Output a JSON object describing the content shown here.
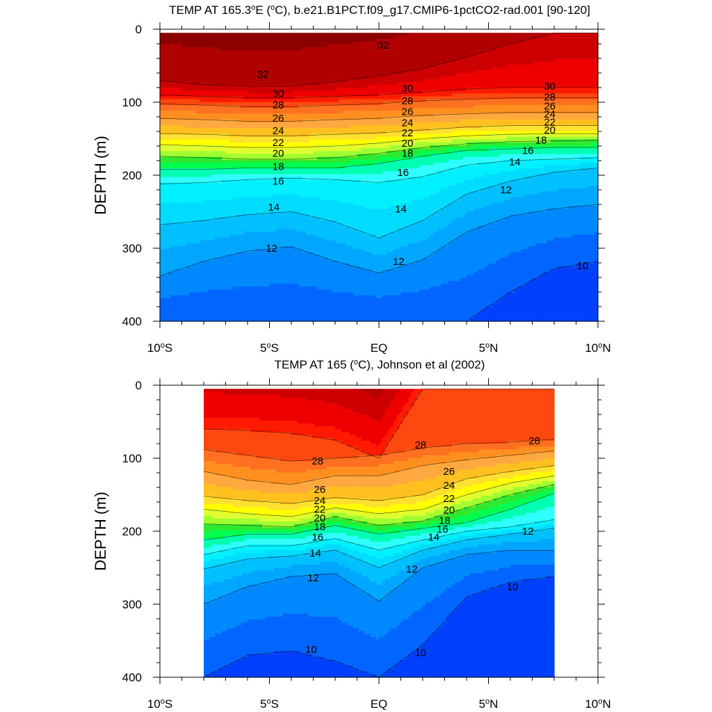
{
  "chart_data": [
    {
      "type": "heatmap",
      "subtype": "filled-contour-section",
      "title_prefix": "TEMP AT 165.3",
      "title_degree": "o",
      "title_mid": "E (",
      "title_unit_o": "o",
      "title_suffix": "C), b.e21.B1PCT.f09_g17.CMIP6-1pctCO2-rad.001 [90-120]",
      "ylabel": "DEPTH (m)",
      "ylim": [
        400,
        0
      ],
      "xlim": [
        -10,
        10
      ],
      "yticks": [
        "0",
        "100",
        "200",
        "300",
        "400"
      ],
      "xticks": [
        {
          "num": "10",
          "hemi": "S"
        },
        {
          "num": "5",
          "hemi": "S"
        },
        {
          "num": "EQ",
          "hemi": ""
        },
        {
          "num": "5",
          "hemi": "N"
        },
        {
          "num": "10",
          "hemi": "N"
        }
      ],
      "data_lat_range": [
        -10,
        10
      ],
      "data_depth_range": [
        5,
        400
      ],
      "levels": [
        10,
        11,
        12,
        13,
        14,
        15,
        16,
        17,
        18,
        19,
        20,
        21,
        22,
        23,
        24,
        25,
        26,
        27,
        28,
        29,
        30,
        31,
        32
      ],
      "isotherm_depths": {
        "lat": [
          -10,
          -8,
          -6,
          -4,
          -2,
          0,
          2,
          4,
          6,
          8,
          10
        ],
        "t32": [
          70,
          76,
          78,
          78,
          72,
          64,
          54,
          38,
          20,
          5,
          5
        ],
        "t30": [
          90,
          92,
          94,
          94,
          92,
          90,
          86,
          82,
          80,
          80,
          80
        ],
        "t28": [
          102,
          104,
          106,
          106,
          104,
          102,
          98,
          96,
          94,
          94,
          94
        ],
        "t26": [
          122,
          124,
          126,
          126,
          124,
          122,
          118,
          116,
          114,
          114,
          114
        ],
        "t24": [
          143,
          144,
          146,
          146,
          144,
          142,
          138,
          134,
          132,
          132,
          132
        ],
        "t22": [
          158,
          160,
          162,
          162,
          160,
          156,
          150,
          146,
          144,
          143,
          143
        ],
        "t20": [
          174,
          176,
          178,
          178,
          176,
          170,
          162,
          157,
          154,
          153,
          152
        ],
        "t18": [
          192,
          192,
          190,
          190,
          190,
          184,
          174,
          166,
          164,
          162,
          162
        ],
        "t16": [
          212,
          210,
          206,
          204,
          206,
          210,
          202,
          186,
          180,
          178,
          176
        ],
        "t14": [
          268,
          262,
          254,
          250,
          264,
          286,
          262,
          226,
          208,
          196,
          190
        ],
        "t12": [
          338,
          318,
          304,
          298,
          318,
          334,
          316,
          278,
          256,
          246,
          240
        ],
        "t10": [
          400,
          400,
          400,
          400,
          400,
          400,
          400,
          400,
          360,
          328,
          318
        ]
      },
      "contour_labels": [
        {
          "text": "32",
          "lat": -5.3,
          "depth": 62
        },
        {
          "text": "32",
          "lat": 0.2,
          "depth": 22
        },
        {
          "text": "30",
          "lat": -4.6,
          "depth": 88
        },
        {
          "text": "28",
          "lat": -4.6,
          "depth": 104
        },
        {
          "text": "26",
          "lat": -4.6,
          "depth": 122
        },
        {
          "text": "24",
          "lat": -4.6,
          "depth": 139
        },
        {
          "text": "22",
          "lat": -4.6,
          "depth": 155
        },
        {
          "text": "20",
          "lat": -4.6,
          "depth": 170
        },
        {
          "text": "18",
          "lat": -4.6,
          "depth": 188
        },
        {
          "text": "16",
          "lat": -4.6,
          "depth": 208
        },
        {
          "text": "14",
          "lat": -4.8,
          "depth": 244
        },
        {
          "text": "12",
          "lat": -4.9,
          "depth": 300
        },
        {
          "text": "30",
          "lat": 1.3,
          "depth": 81
        },
        {
          "text": "28",
          "lat": 1.3,
          "depth": 98
        },
        {
          "text": "26",
          "lat": 1.3,
          "depth": 113
        },
        {
          "text": "24",
          "lat": 1.3,
          "depth": 128
        },
        {
          "text": "22",
          "lat": 1.3,
          "depth": 142
        },
        {
          "text": "20",
          "lat": 1.3,
          "depth": 156
        },
        {
          "text": "18",
          "lat": 1.3,
          "depth": 170
        },
        {
          "text": "16",
          "lat": 1.1,
          "depth": 196
        },
        {
          "text": "14",
          "lat": 1.0,
          "depth": 246
        },
        {
          "text": "12",
          "lat": 0.9,
          "depth": 318
        },
        {
          "text": "30",
          "lat": 7.8,
          "depth": 78
        },
        {
          "text": "28",
          "lat": 7.8,
          "depth": 93
        },
        {
          "text": "26",
          "lat": 7.8,
          "depth": 105
        },
        {
          "text": "24",
          "lat": 7.8,
          "depth": 116
        },
        {
          "text": "22",
          "lat": 7.8,
          "depth": 127
        },
        {
          "text": "20",
          "lat": 7.8,
          "depth": 138
        },
        {
          "text": "18",
          "lat": 7.4,
          "depth": 152
        },
        {
          "text": "16",
          "lat": 6.8,
          "depth": 166
        },
        {
          "text": "14",
          "lat": 6.2,
          "depth": 182
        },
        {
          "text": "12",
          "lat": 5.8,
          "depth": 220
        },
        {
          "text": "10",
          "lat": 9.3,
          "depth": 324
        }
      ]
    },
    {
      "type": "heatmap",
      "subtype": "filled-contour-section",
      "title_prefix": "TEMP AT 165 (",
      "title_unit_o": "o",
      "title_suffix": "C), Johnson et al (2002)",
      "ylabel": "DEPTH (m)",
      "ylim": [
        400,
        0
      ],
      "xlim": [
        -10,
        10
      ],
      "yticks": [
        "0",
        "100",
        "200",
        "300",
        "400"
      ],
      "xticks": [
        {
          "num": "10",
          "hemi": "S"
        },
        {
          "num": "5",
          "hemi": "S"
        },
        {
          "num": "EQ",
          "hemi": ""
        },
        {
          "num": "5",
          "hemi": "N"
        },
        {
          "num": "10",
          "hemi": "N"
        }
      ],
      "data_lat_range": [
        -8,
        8
      ],
      "data_depth_range": [
        5,
        400
      ],
      "levels": [
        10,
        11,
        12,
        13,
        14,
        15,
        16,
        17,
        18,
        19,
        20,
        21,
        22,
        23,
        24,
        25,
        26,
        27,
        28,
        29
      ],
      "isotherm_depths": {
        "lat": [
          -8,
          -6,
          -4,
          -2,
          0,
          2,
          4,
          6,
          8
        ],
        "t29": [
          60,
          62,
          66,
          75,
          100,
          5,
          5,
          5,
          5
        ],
        "t28": [
          88,
          96,
          104,
          100,
          96,
          86,
          80,
          78,
          74
        ],
        "t26": [
          118,
          130,
          136,
          124,
          124,
          110,
          102,
          96,
          90
        ],
        "t24": [
          152,
          158,
          162,
          154,
          158,
          150,
          128,
          118,
          110
        ],
        "t22": [
          170,
          176,
          180,
          168,
          176,
          170,
          150,
          134,
          124
        ],
        "t20": [
          190,
          192,
          194,
          180,
          192,
          186,
          168,
          150,
          136
        ],
        "t18": [
          212,
          204,
          204,
          192,
          204,
          196,
          188,
          170,
          148
        ],
        "t16": [
          232,
          220,
          220,
          210,
          226,
          212,
          200,
          194,
          184
        ],
        "t14": [
          252,
          238,
          234,
          226,
          250,
          226,
          212,
          204,
          196
        ],
        "t12": [
          300,
          276,
          262,
          258,
          296,
          250,
          232,
          226,
          226
        ],
        "t10": [
          400,
          370,
          364,
          378,
          400,
          356,
          290,
          270,
          262
        ]
      },
      "contour_labels": [
        {
          "text": "28",
          "lat": -2.8,
          "depth": 104
        },
        {
          "text": "26",
          "lat": -2.7,
          "depth": 143
        },
        {
          "text": "24",
          "lat": -2.7,
          "depth": 158
        },
        {
          "text": "22",
          "lat": -2.7,
          "depth": 170
        },
        {
          "text": "20",
          "lat": -2.7,
          "depth": 182
        },
        {
          "text": "18",
          "lat": -2.7,
          "depth": 194
        },
        {
          "text": "16",
          "lat": -2.8,
          "depth": 208
        },
        {
          "text": "14",
          "lat": -2.9,
          "depth": 230
        },
        {
          "text": "12",
          "lat": -3.0,
          "depth": 264
        },
        {
          "text": "10",
          "lat": -3.1,
          "depth": 362
        },
        {
          "text": "28",
          "lat": 1.9,
          "depth": 82
        },
        {
          "text": "26",
          "lat": 3.2,
          "depth": 118
        },
        {
          "text": "24",
          "lat": 3.2,
          "depth": 137
        },
        {
          "text": "22",
          "lat": 3.2,
          "depth": 155
        },
        {
          "text": "20",
          "lat": 3.2,
          "depth": 171
        },
        {
          "text": "18",
          "lat": 3.0,
          "depth": 185
        },
        {
          "text": "16",
          "lat": 2.9,
          "depth": 197
        },
        {
          "text": "14",
          "lat": 2.5,
          "depth": 208
        },
        {
          "text": "12",
          "lat": 1.5,
          "depth": 252
        },
        {
          "text": "10",
          "lat": 1.9,
          "depth": 366
        },
        {
          "text": "28",
          "lat": 7.1,
          "depth": 76
        },
        {
          "text": "12",
          "lat": 6.8,
          "depth": 200
        },
        {
          "text": "10",
          "lat": 6.1,
          "depth": 276
        }
      ]
    }
  ]
}
